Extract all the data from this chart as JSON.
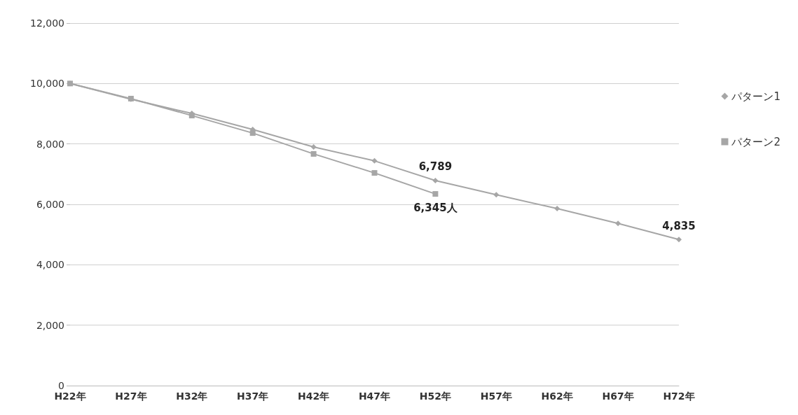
{
  "chart_data": {
    "type": "line",
    "categories": [
      "H22年",
      "H27年",
      "H32年",
      "H37年",
      "H42年",
      "H47年",
      "H52年",
      "H57年",
      "H62年",
      "H67年",
      "H72年"
    ],
    "series": [
      {
        "name": "パターン1",
        "color": "#a6a6a6",
        "marker": "diamond",
        "values": [
          10000,
          9480,
          9010,
          8480,
          7900,
          7440,
          6789,
          6320,
          5860,
          5370,
          4835
        ],
        "value_labels": [
          null,
          null,
          null,
          null,
          null,
          null,
          "6,789",
          null,
          null,
          null,
          "4,835"
        ]
      },
      {
        "name": "パターン2",
        "color": "#a6a6a6",
        "marker": "square",
        "values": [
          10000,
          9500,
          8940,
          8360,
          7670,
          7040,
          6345,
          null,
          null,
          null,
          null
        ],
        "value_labels": [
          null,
          null,
          null,
          null,
          null,
          null,
          "6,345人",
          null,
          null,
          null,
          null
        ]
      }
    ],
    "ylim": [
      0,
      12000
    ],
    "yticks": [
      0,
      {
        "value": 2000,
        "label": "2,000"
      },
      {
        "value": 4000,
        "label": "4,000"
      },
      {
        "value": 6000,
        "label": "6,000"
      },
      {
        "value": 8000,
        "label": "8,000"
      },
      {
        "value": 10000,
        "label": "10,000"
      },
      {
        "value": 12000,
        "label": "12,000"
      }
    ],
    "grid": "y",
    "legend": "right",
    "line_style": "solid"
  }
}
